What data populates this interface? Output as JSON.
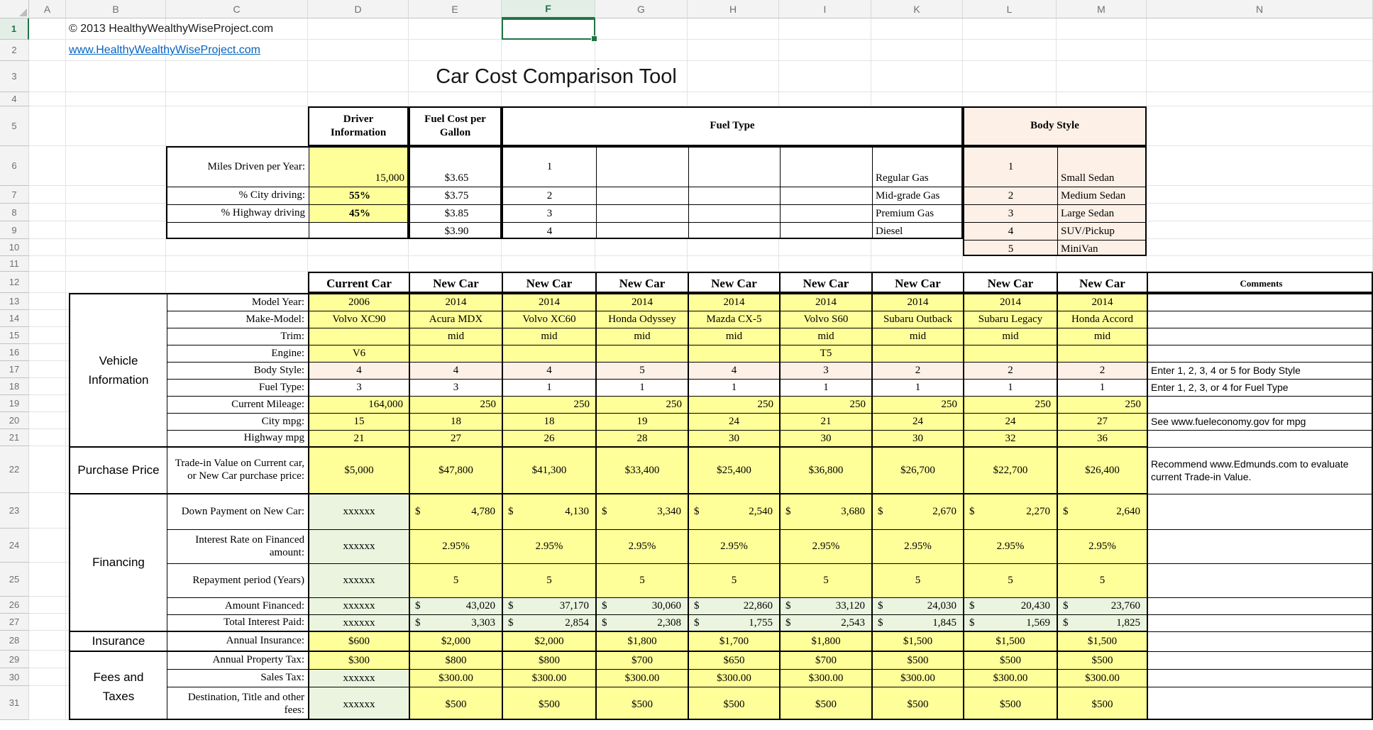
{
  "colors": {
    "input_yellow": "#FFFF99",
    "input_green": "#EAF4DF",
    "body_style_pink": "#FCF0E7",
    "hyperlink_blue": "#0563C1",
    "selection_green": "#217346"
  },
  "header": {
    "copyright": "© 2013 HealthyWealthyWiseProject.com",
    "link": "www.HealthyWealthyWiseProject.com",
    "title": "Car Cost Comparison Tool"
  },
  "grid": {
    "column_letters": [
      "A",
      "B",
      "C",
      "D",
      "E",
      "F",
      "G",
      "H",
      "I",
      "K",
      "L",
      "M",
      "N"
    ],
    "row_numbers": [
      "1",
      "2",
      "3",
      "4",
      "5",
      "6",
      "7",
      "8",
      "9",
      "10",
      "11",
      "12",
      "13",
      "14",
      "15",
      "16",
      "17",
      "18",
      "19",
      "20",
      "21",
      "22",
      "23",
      "24",
      "25",
      "26",
      "27",
      "28",
      "29",
      "30",
      "31"
    ],
    "selection": {
      "column": "F",
      "row": "1"
    }
  },
  "driver_info": {
    "header": "Driver Information",
    "rows": [
      {
        "label": "Miles Driven per Year:",
        "value": "15,000"
      },
      {
        "label": "% City driving:",
        "value": "55%"
      },
      {
        "label": "% Highway driving",
        "value": "45%"
      },
      {
        "label": "",
        "value": ""
      }
    ]
  },
  "fuel_cost": {
    "header": "Fuel Cost per Gallon",
    "values": [
      "$3.65",
      "$3.75",
      "$3.85",
      "$3.90"
    ]
  },
  "fuel_type": {
    "header": "Fuel Type",
    "codes": [
      "1",
      "2",
      "3",
      "4"
    ],
    "names": [
      "Regular Gas",
      "Mid-grade Gas",
      "Premium Gas",
      "Diesel"
    ]
  },
  "body_style": {
    "header": "Body Style",
    "codes": [
      "1",
      "2",
      "3",
      "4",
      "5"
    ],
    "names": [
      "Small Sedan",
      "Medium Sedan",
      "Large Sedan",
      "SUV/Pickup",
      "MiniVan"
    ]
  },
  "comparison": {
    "currency_symbol": "$",
    "col_headers": [
      "Current Car",
      "New Car",
      "New Car",
      "New Car",
      "New Car",
      "New Car",
      "New Car",
      "New Car",
      "New Car"
    ],
    "comments_header": "Comments",
    "sections": [
      {
        "label": "Vehicle\nInformation",
        "rows": 9
      },
      {
        "label": "Purchase Price",
        "rows": 1
      },
      {
        "label": "Financing",
        "rows": 5
      },
      {
        "label": "Insurance",
        "rows": 1
      },
      {
        "label": "Fees and\nTaxes",
        "rows": 3
      }
    ],
    "rows": [
      {
        "label": "Model Year:",
        "fill": "yellow",
        "values": [
          "2006",
          "2014",
          "2014",
          "2014",
          "2014",
          "2014",
          "2014",
          "2014",
          "2014"
        ],
        "comment": ""
      },
      {
        "label": "Make-Model:",
        "fill": "yellow",
        "values": [
          "Volvo XC90",
          "Acura MDX",
          "Volvo XC60",
          "Honda Odyssey",
          "Mazda CX-5",
          "Volvo S60",
          "Subaru Outback",
          "Subaru Legacy",
          "Honda Accord"
        ],
        "comment": ""
      },
      {
        "label": "Trim:",
        "fill": "yellow",
        "values": [
          "",
          "mid",
          "mid",
          "mid",
          "mid",
          "mid",
          "mid",
          "mid",
          "mid"
        ],
        "comment": ""
      },
      {
        "label": "Engine:",
        "fill": "yellow",
        "values": [
          "V6",
          "",
          "",
          "",
          "",
          "T5",
          "",
          "",
          ""
        ],
        "comment": ""
      },
      {
        "label": "Body Style:",
        "fill": "pink",
        "values": [
          "4",
          "4",
          "4",
          "5",
          "4",
          "3",
          "2",
          "2",
          "2"
        ],
        "comment": "Enter 1, 2, 3, 4 or 5 for Body Style"
      },
      {
        "label": "Fuel Type:",
        "fill": "white",
        "values": [
          "3",
          "3",
          "1",
          "1",
          "1",
          "1",
          "1",
          "1",
          "1"
        ],
        "comment": "Enter 1, 2, 3, or 4 for Fuel Type"
      },
      {
        "label": "Current Mileage:",
        "fill": "yellow",
        "align": "right",
        "values": [
          "164,000",
          "250",
          "250",
          "250",
          "250",
          "250",
          "250",
          "250",
          "250"
        ],
        "comment": ""
      },
      {
        "label": "City mpg:",
        "fill": "yellow",
        "values": [
          "15",
          "18",
          "18",
          "19",
          "24",
          "21",
          "24",
          "24",
          "27"
        ],
        "comment": "See www.fueleconomy.gov for mpg"
      },
      {
        "label": "Highway mpg",
        "fill": "yellow",
        "values": [
          "21",
          "27",
          "26",
          "28",
          "30",
          "30",
          "30",
          "32",
          "36"
        ],
        "comment": ""
      },
      {
        "label": "Trade-in Value on Current car, or New Car purchase price:",
        "fill": "yellow",
        "values": [
          "$5,000",
          "$47,800",
          "$41,300",
          "$33,400",
          "$25,400",
          "$36,800",
          "$26,700",
          "$22,700",
          "$26,400"
        ],
        "comment": "Recommend www.Edmunds.com to evaluate current Trade-in Value."
      },
      {
        "label": "Down Payment on New Car:",
        "fill": "yellow",
        "first_value": "xxxxxx",
        "format": "accounting",
        "values": [
          "4,780",
          "4,130",
          "3,340",
          "2,540",
          "3,680",
          "2,670",
          "2,270",
          "2,640"
        ],
        "comment": ""
      },
      {
        "label": "Interest Rate on Financed amount:",
        "fill": "yellow",
        "first_value": "xxxxxx",
        "values": [
          "2.95%",
          "2.95%",
          "2.95%",
          "2.95%",
          "2.95%",
          "2.95%",
          "2.95%",
          "2.95%"
        ],
        "comment": ""
      },
      {
        "label": "Repayment period (Years)",
        "fill": "yellow",
        "first_value": "xxxxxx",
        "values": [
          "5",
          "5",
          "5",
          "5",
          "5",
          "5",
          "5",
          "5"
        ],
        "comment": ""
      },
      {
        "label": "Amount Financed:",
        "fill": "green",
        "first_value": "xxxxxx",
        "format": "accounting",
        "values": [
          "43,020",
          "37,170",
          "30,060",
          "22,860",
          "33,120",
          "24,030",
          "20,430",
          "23,760"
        ],
        "comment": ""
      },
      {
        "label": "Total Interest Paid:",
        "fill": "green",
        "first_value": "xxxxxx",
        "format": "accounting",
        "values": [
          "3,303",
          "2,854",
          "2,308",
          "1,755",
          "2,543",
          "1,845",
          "1,569",
          "1,825"
        ],
        "comment": ""
      },
      {
        "label": "Annual Insurance:",
        "fill": "yellow",
        "values": [
          "$600",
          "$2,000",
          "$2,000",
          "$1,800",
          "$1,700",
          "$1,800",
          "$1,500",
          "$1,500",
          "$1,500"
        ],
        "comment": ""
      },
      {
        "label": "Annual Property Tax:",
        "fill": "yellow",
        "values": [
          "$300",
          "$800",
          "$800",
          "$700",
          "$650",
          "$700",
          "$500",
          "$500",
          "$500"
        ],
        "comment": ""
      },
      {
        "label": "Sales Tax:",
        "fill": "yellow",
        "first_value": "xxxxxx",
        "values": [
          "$300.00",
          "$300.00",
          "$300.00",
          "$300.00",
          "$300.00",
          "$300.00",
          "$300.00",
          "$300.00"
        ],
        "comment": ""
      },
      {
        "label": "Destination, Title and other fees:",
        "fill": "yellow",
        "first_value": "xxxxxx",
        "values": [
          "$500",
          "$500",
          "$500",
          "$500",
          "$500",
          "$500",
          "$500",
          "$500"
        ],
        "comment": ""
      }
    ]
  },
  "insurance_section_label": "Insurance",
  "sheet_name": "Car Cost Comparison Tool"
}
